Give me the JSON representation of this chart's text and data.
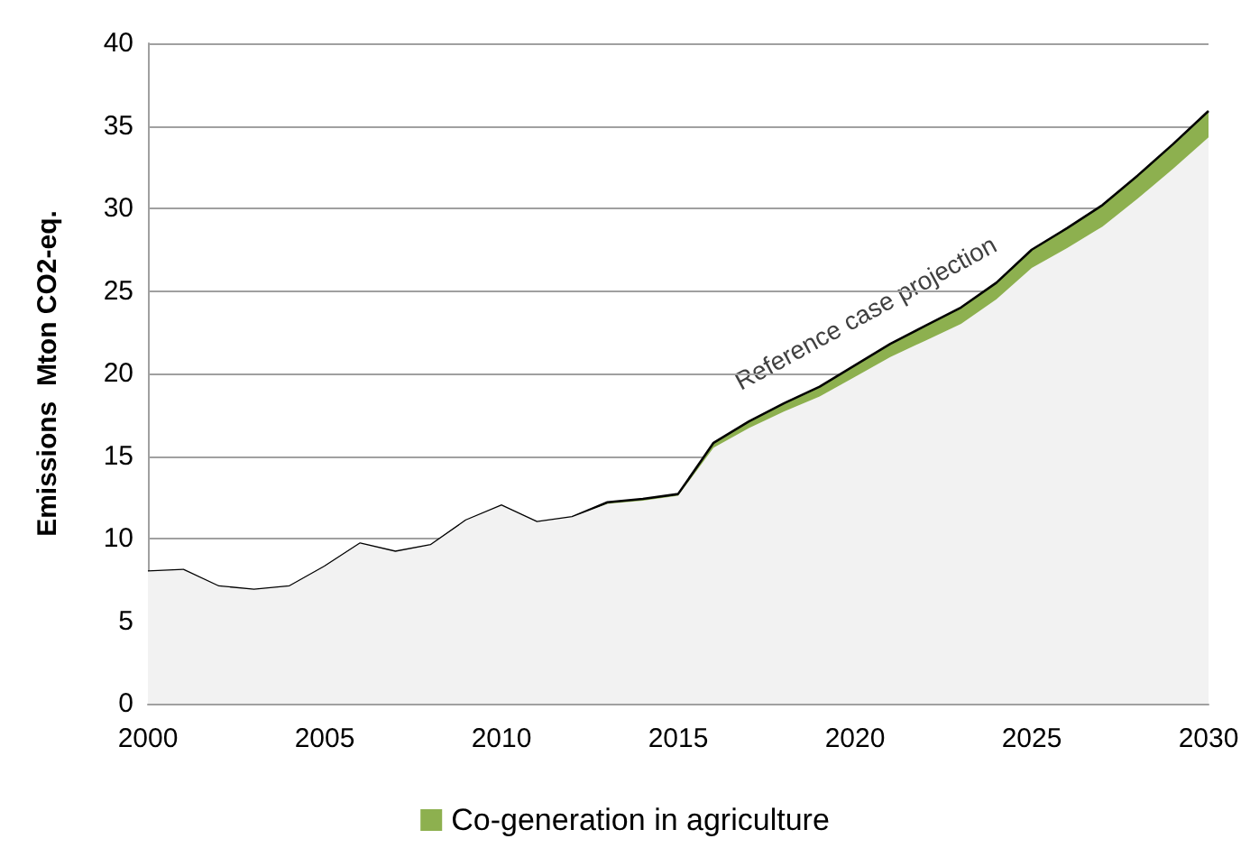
{
  "chart_data": {
    "type": "area",
    "stacked": true,
    "ylabel": "Emissions  Mton CO2-eq.",
    "x": [
      2000,
      2001,
      2002,
      2003,
      2004,
      2005,
      2006,
      2007,
      2008,
      2009,
      2010,
      2011,
      2012,
      2013,
      2014,
      2015,
      2016,
      2017,
      2018,
      2019,
      2020,
      2021,
      2022,
      2023,
      2024,
      2025,
      2026,
      2027,
      2028,
      2029,
      2030
    ],
    "series": [
      {
        "color": "#f2f2f2",
        "values": [
          8.0,
          8.1,
          7.1,
          6.9,
          7.1,
          8.3,
          9.7,
          9.2,
          9.6,
          11.1,
          12.0,
          11.0,
          11.3,
          12.1,
          12.3,
          12.6,
          15.5,
          16.7,
          17.7,
          18.6,
          19.8,
          21.0,
          22.0,
          23.0,
          24.5,
          26.4,
          27.6,
          28.9,
          30.6,
          32.4,
          34.3
        ]
      },
      {
        "name": "Co-generation in agriculture",
        "color": "#8db04f",
        "values": [
          0,
          0,
          0,
          0,
          0,
          0,
          0,
          0,
          0,
          0,
          0,
          0,
          0,
          0.1,
          0.1,
          0.1,
          0.3,
          0.4,
          0.5,
          0.6,
          0.7,
          0.8,
          0.9,
          1.0,
          1.0,
          1.1,
          1.2,
          1.3,
          1.4,
          1.5,
          1.6
        ]
      }
    ],
    "xlim": [
      2000,
      2030
    ],
    "xticks": [
      2000,
      2005,
      2010,
      2015,
      2020,
      2025,
      2030
    ],
    "ylim": [
      0,
      40
    ],
    "yticks": [
      0,
      5,
      10,
      15,
      20,
      25,
      30,
      35,
      40
    ],
    "grid": "y",
    "legend": "bottom",
    "annotations": [
      "Reference case projection"
    ]
  }
}
